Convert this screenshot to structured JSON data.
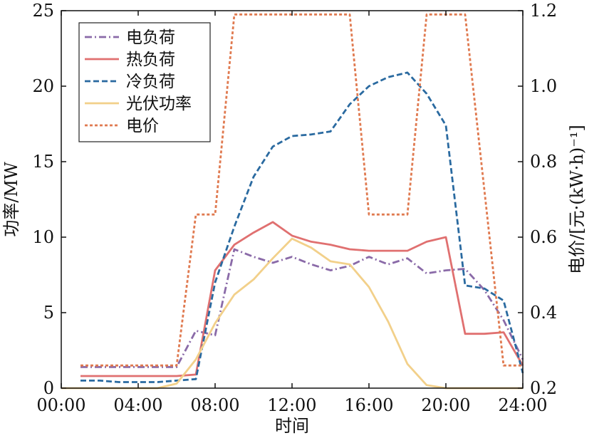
{
  "chart_data": {
    "type": "line",
    "xlabel": "时间",
    "ylabel_left": "功率/MW",
    "ylabel_right": "电价/[元·(kW·h)⁻¹]",
    "x_ticks": [
      "00:00",
      "04:00",
      "08:00",
      "12:00",
      "16:00",
      "20:00",
      "24:00"
    ],
    "y_left_ticks": [
      "0",
      "5",
      "10",
      "15",
      "20",
      "25"
    ],
    "y_right_ticks": [
      "0.2",
      "0.4",
      "0.6",
      "0.8",
      "1.0",
      "1.2"
    ],
    "xlim": [
      0,
      24
    ],
    "ylim_left": [
      0,
      25
    ],
    "ylim_right": [
      0.2,
      1.2
    ],
    "grid": false,
    "legend_position": "top-left",
    "series": [
      {
        "name": "电负荷",
        "axis": "left",
        "color": "#8a6aa8",
        "dash": "dashdot",
        "points": [
          [
            1,
            1.4
          ],
          [
            6,
            1.4
          ],
          [
            7,
            3.8
          ],
          [
            8,
            3.5
          ],
          [
            9,
            9.2
          ],
          [
            10,
            8.7
          ],
          [
            11,
            8.3
          ],
          [
            12,
            8.7
          ],
          [
            13,
            8.2
          ],
          [
            14,
            7.8
          ],
          [
            15,
            8.1
          ],
          [
            16,
            8.7
          ],
          [
            17,
            8.2
          ],
          [
            18,
            8.6
          ],
          [
            19,
            7.6
          ],
          [
            20,
            7.8
          ],
          [
            21,
            7.9
          ],
          [
            22,
            6.5
          ],
          [
            23,
            4.5
          ],
          [
            24,
            1.9
          ]
        ]
      },
      {
        "name": "热负荷",
        "axis": "left",
        "color": "#e07070",
        "dash": "solid",
        "points": [
          [
            1,
            0.8
          ],
          [
            6,
            0.8
          ],
          [
            7,
            0.9
          ],
          [
            8,
            7.8
          ],
          [
            9,
            9.5
          ],
          [
            10,
            10.3
          ],
          [
            11,
            11.0
          ],
          [
            12,
            10.1
          ],
          [
            13,
            9.7
          ],
          [
            14,
            9.5
          ],
          [
            15,
            9.2
          ],
          [
            16,
            9.1
          ],
          [
            17,
            9.1
          ],
          [
            18,
            9.1
          ],
          [
            19,
            9.7
          ],
          [
            20,
            10.0
          ],
          [
            21,
            3.6
          ],
          [
            22,
            3.6
          ],
          [
            23,
            3.7
          ],
          [
            24,
            1.5
          ]
        ]
      },
      {
        "name": "冷负荷",
        "axis": "left",
        "color": "#2a6aa0",
        "dash": "dashed",
        "points": [
          [
            1,
            0.5
          ],
          [
            2,
            0.5
          ],
          [
            3,
            0.4
          ],
          [
            4,
            0.4
          ],
          [
            5,
            0.4
          ],
          [
            6,
            0.5
          ],
          [
            7,
            0.6
          ],
          [
            8,
            7.0
          ],
          [
            9,
            10.7
          ],
          [
            10,
            14.0
          ],
          [
            11,
            16.0
          ],
          [
            12,
            16.7
          ],
          [
            13,
            16.8
          ],
          [
            14,
            17.0
          ],
          [
            15,
            18.8
          ],
          [
            16,
            20.0
          ],
          [
            17,
            20.6
          ],
          [
            18,
            20.9
          ],
          [
            19,
            19.5
          ],
          [
            20,
            17.4
          ],
          [
            21,
            6.8
          ],
          [
            22,
            6.6
          ],
          [
            23,
            5.8
          ],
          [
            24,
            1.0
          ]
        ]
      },
      {
        "name": "光伏功率",
        "axis": "left",
        "color": "#f2d08a",
        "dash": "solid",
        "points": [
          [
            0,
            0
          ],
          [
            5,
            0
          ],
          [
            6,
            0.3
          ],
          [
            7,
            1.9
          ],
          [
            8,
            4.3
          ],
          [
            9,
            6.2
          ],
          [
            10,
            7.2
          ],
          [
            11,
            8.6
          ],
          [
            12,
            9.9
          ],
          [
            13,
            9.3
          ],
          [
            14,
            8.4
          ],
          [
            15,
            8.2
          ],
          [
            16,
            6.7
          ],
          [
            17,
            4.4
          ],
          [
            18,
            1.6
          ],
          [
            19,
            0.2
          ],
          [
            20,
            0
          ],
          [
            24,
            0
          ]
        ]
      },
      {
        "name": "电价",
        "axis": "right",
        "color": "#e07a50",
        "dash": "dotted",
        "points": [
          [
            1,
            0.26
          ],
          [
            6,
            0.26
          ],
          [
            7,
            0.66
          ],
          [
            8,
            0.66
          ],
          [
            9,
            1.19
          ],
          [
            15,
            1.19
          ],
          [
            16,
            0.66
          ],
          [
            18,
            0.66
          ],
          [
            19,
            1.19
          ],
          [
            21,
            1.19
          ],
          [
            23,
            0.26
          ],
          [
            24,
            0.26
          ]
        ]
      }
    ]
  }
}
